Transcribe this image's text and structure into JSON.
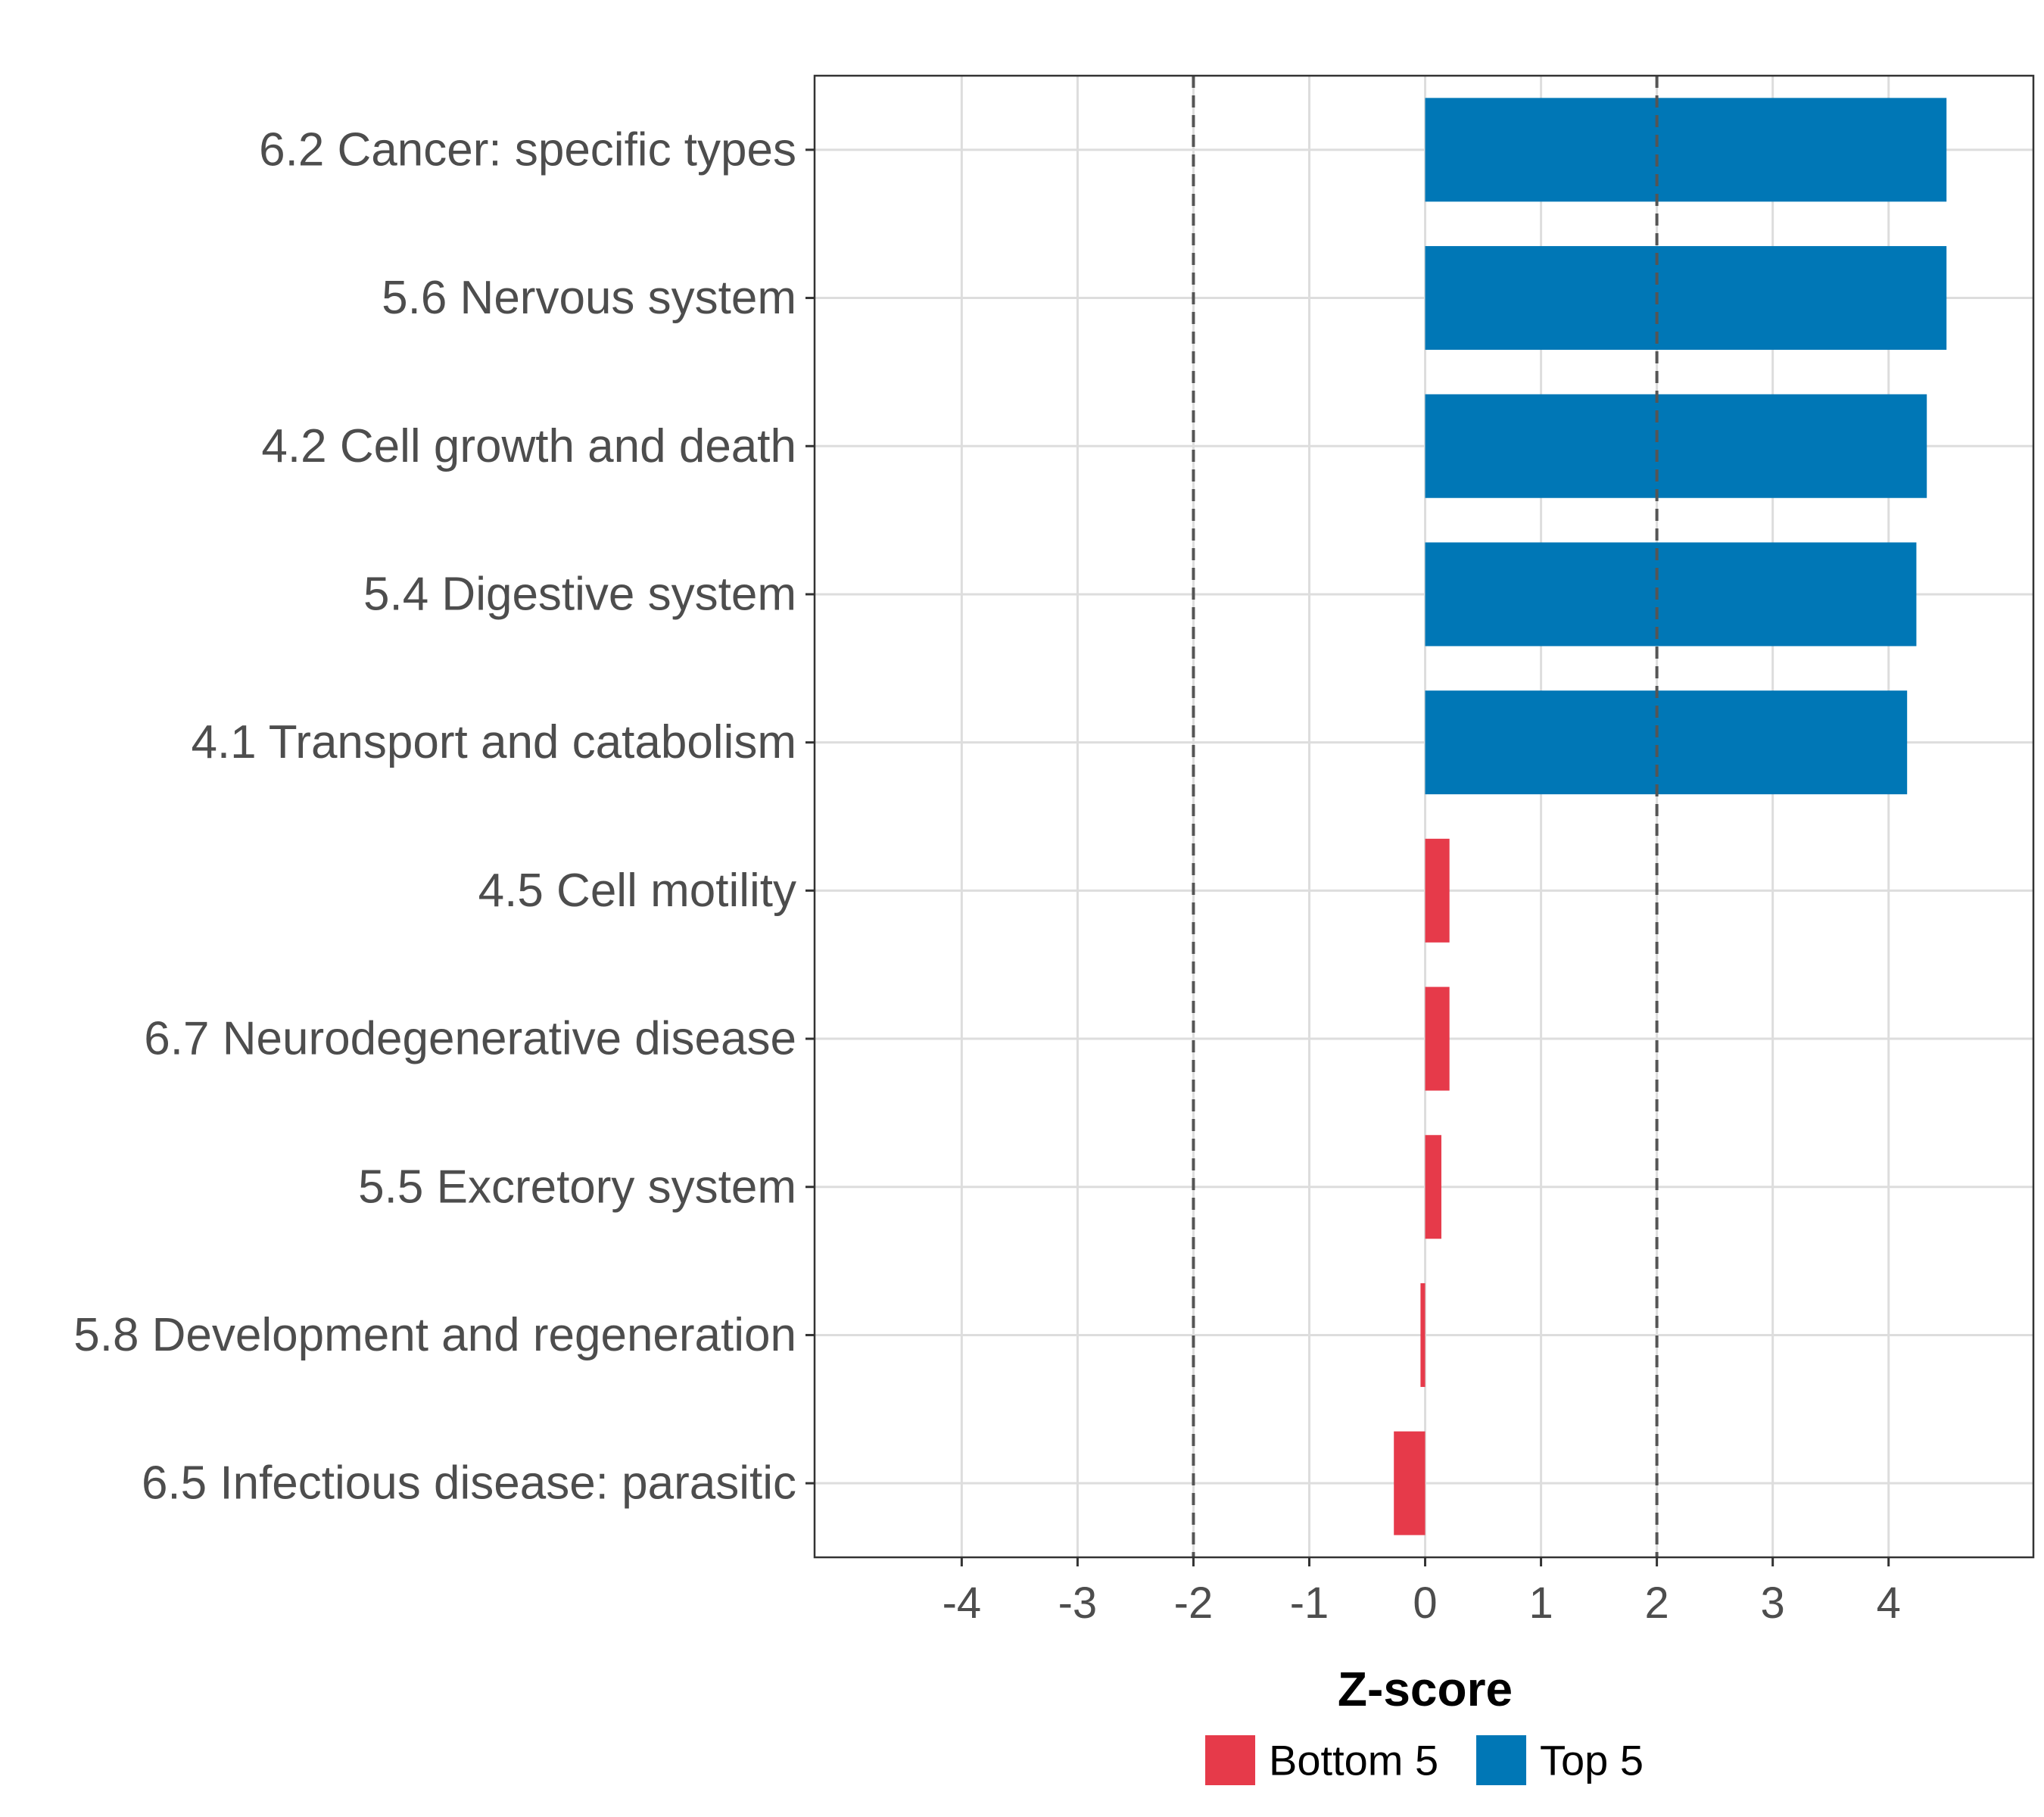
{
  "chart_data": {
    "type": "bar",
    "orientation": "horizontal",
    "title": "",
    "xlabel": "Z-score",
    "ylabel": "",
    "xlim": [
      -5.27,
      5.25
    ],
    "xticks": [
      -4,
      -3,
      -2,
      -1,
      0,
      1,
      2,
      3,
      4
    ],
    "grid": true,
    "reference_lines": [
      -2,
      2
    ],
    "categories": [
      "6.2 Cancer: specific types",
      "5.6 Nervous system",
      "4.2 Cell growth and death",
      "5.4 Digestive system",
      "4.1 Transport and catabolism",
      "4.5 Cell motility",
      "6.7 Neurodegenerative disease",
      "5.5 Excretory system",
      "5.8 Development and regeneration",
      "6.5 Infectious disease: parasitic"
    ],
    "values": [
      4.5,
      4.5,
      4.33,
      4.24,
      4.16,
      0.21,
      0.21,
      0.14,
      -0.04,
      -0.27
    ],
    "groups": [
      "Top 5",
      "Top 5",
      "Top 5",
      "Top 5",
      "Top 5",
      "Bottom 5",
      "Bottom 5",
      "Bottom 5",
      "Bottom 5",
      "Bottom 5"
    ],
    "legend": {
      "position": "bottom",
      "entries": [
        {
          "name": "Bottom 5",
          "color": "#e63a4a"
        },
        {
          "name": "Top 5",
          "color": "#0077b6"
        }
      ]
    }
  }
}
